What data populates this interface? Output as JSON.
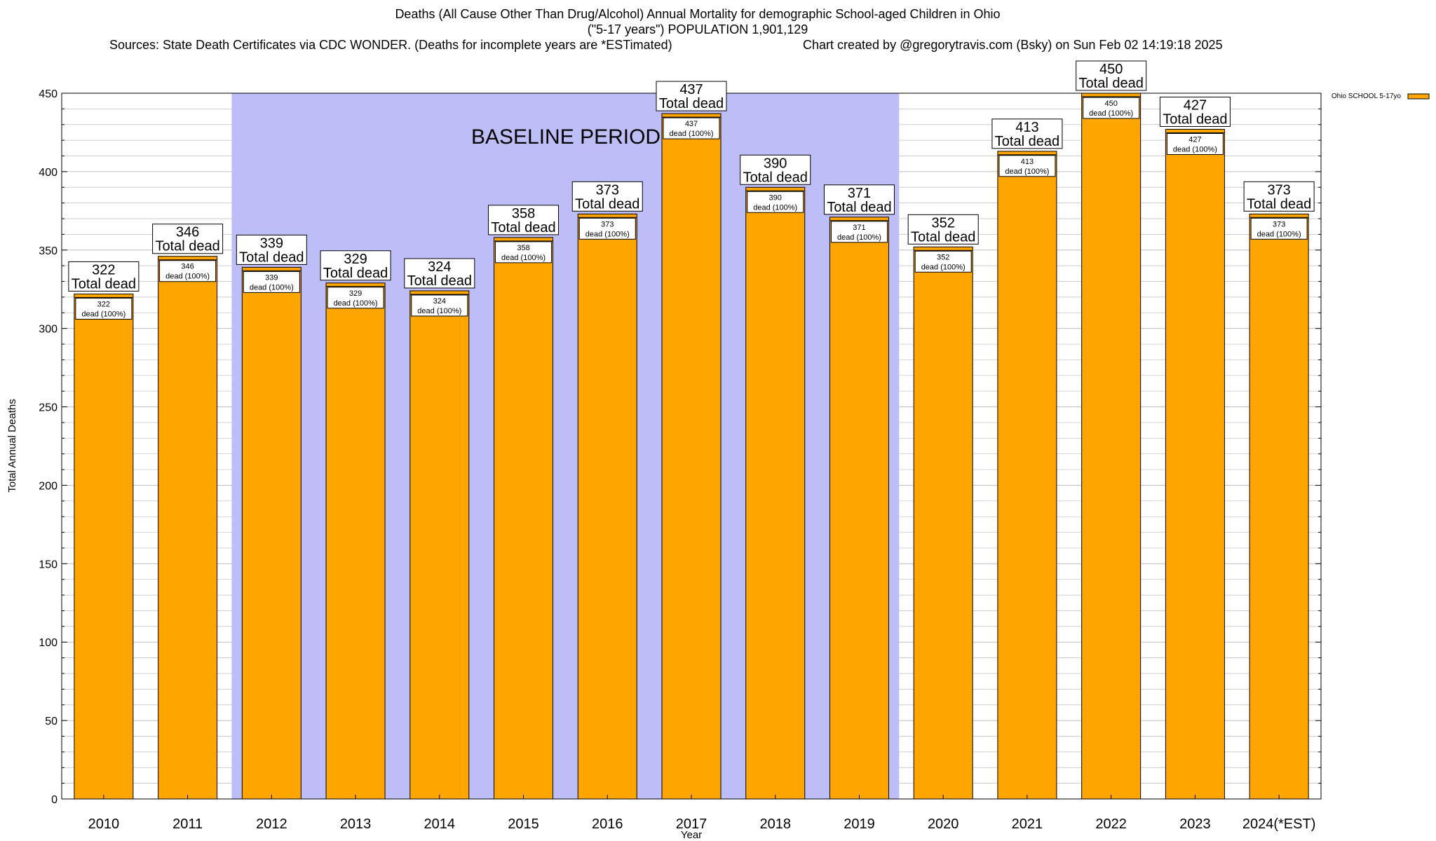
{
  "header": {
    "title_line1": "Deaths (All Cause Other Than Drug/Alcohol) Annual Mortality for demographic School-aged Children in Ohio",
    "title_line2": "(\"5-17 years\") POPULATION 1,901,129",
    "title_line3_left": "Sources: State Death Certificates via CDC WONDER. (Deaths for incomplete years are *ESTimated)",
    "title_line3_right": "Chart created by @gregorytravis.com (Bsky) on Sun Feb 02 14:19:18 2025"
  },
  "colors": {
    "bar": "#FFA500",
    "baseline_band": "#BDBDF8",
    "grid": "#bfbfbf"
  },
  "chart_data": {
    "type": "bar",
    "title": "Deaths (All Cause Other Than Drug/Alcohol) Annual Mortality for demographic School-aged Children in Ohio",
    "xlabel": "Year",
    "ylabel": "Total Annual Deaths",
    "ylim": [
      0,
      450
    ],
    "yticks": [
      0,
      50,
      100,
      150,
      200,
      250,
      300,
      350,
      400,
      450
    ],
    "grid": true,
    "legend_position": "top-right",
    "categories": [
      "2010",
      "2011",
      "2012",
      "2013",
      "2014",
      "2015",
      "2016",
      "2017",
      "2018",
      "2019",
      "2020",
      "2021",
      "2022",
      "2023",
      "2024(*EST)"
    ],
    "series": [
      {
        "name": "Ohio SCHOOL 5-17yo",
        "values": [
          322,
          346,
          339,
          329,
          324,
          358,
          373,
          437,
          390,
          371,
          352,
          413,
          450,
          427,
          373
        ]
      }
    ],
    "total_label_text": "Total dead",
    "inner_label_text": "dead (100%)",
    "baseline_period": {
      "label": "BASELINE PERIOD",
      "start_category": "2012",
      "end_category": "2019"
    }
  }
}
